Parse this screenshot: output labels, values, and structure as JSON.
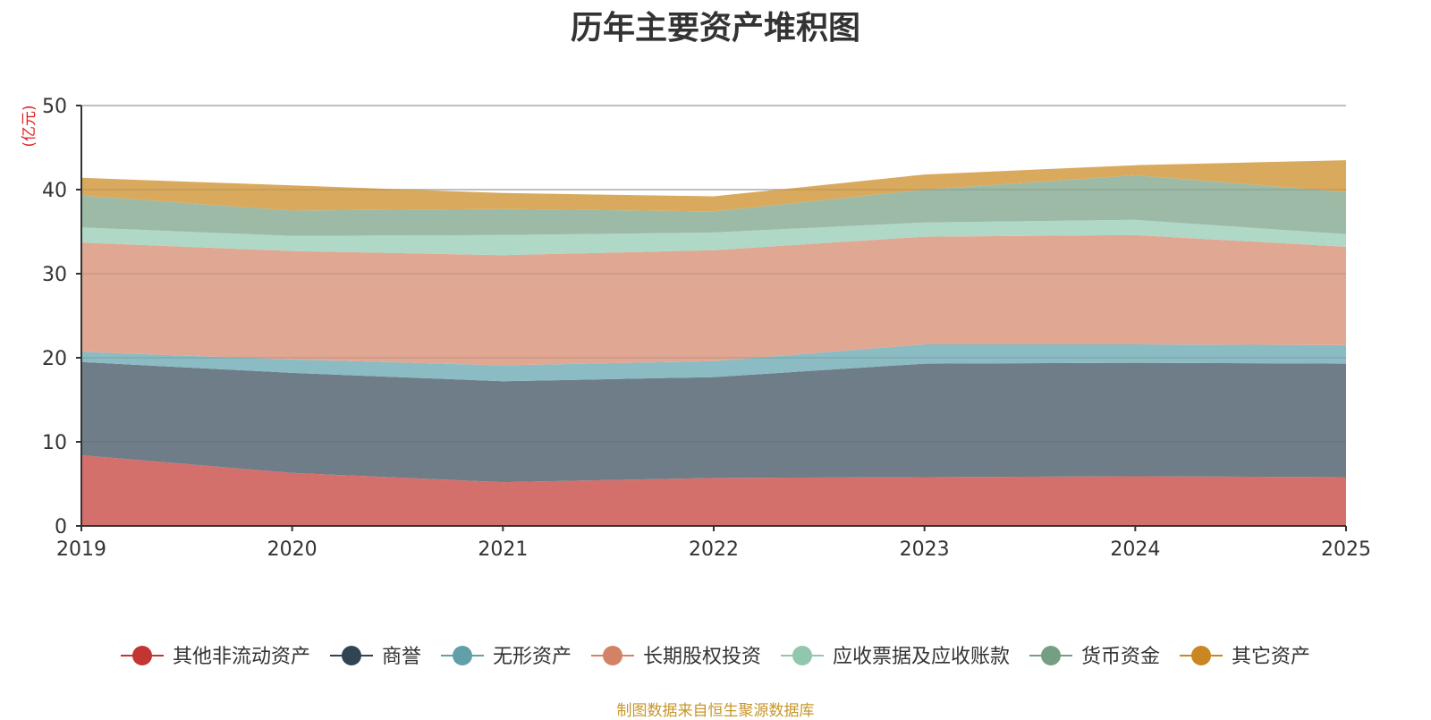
{
  "chart_data": {
    "type": "area",
    "stacked": true,
    "title": "历年主要资产堆积图",
    "ylabel": "(亿元)",
    "ylim": [
      0,
      50
    ],
    "yticks": [
      "0",
      "10",
      "20",
      "30",
      "40",
      "50"
    ],
    "categories": [
      "2019",
      "2020",
      "2021",
      "2022",
      "2023",
      "2024",
      "2025"
    ],
    "series": [
      {
        "name": "其他非流动资产",
        "fill": "#d4706c",
        "marker": "#c23531",
        "values": [
          8.4,
          6.3,
          5.2,
          5.7,
          5.8,
          5.9,
          5.8
        ]
      },
      {
        "name": "商誉",
        "fill": "#6e7d88",
        "marker": "#2f4554",
        "values": [
          11.1,
          11.9,
          12.0,
          12.0,
          13.5,
          13.5,
          13.5
        ]
      },
      {
        "name": "无形资产",
        "fill": "#8bbbc3",
        "marker": "#61a0a8",
        "values": [
          1.2,
          1.6,
          1.9,
          1.9,
          2.3,
          2.2,
          2.2
        ]
      },
      {
        "name": "长期股权投资",
        "fill": "#e0a793",
        "marker": "#d48265",
        "values": [
          13.0,
          12.9,
          13.1,
          13.2,
          12.8,
          13.0,
          11.7
        ]
      },
      {
        "name": "应收票据及应收账款",
        "fill": "#afd8c6",
        "marker": "#91c7ae",
        "values": [
          1.8,
          1.8,
          2.4,
          2.1,
          1.7,
          1.8,
          1.5
        ]
      },
      {
        "name": "货币资金",
        "fill": "#9cbaa6",
        "marker": "#749f83",
        "values": [
          3.8,
          3.0,
          3.1,
          2.5,
          3.9,
          5.3,
          5.0
        ]
      },
      {
        "name": "其它资产",
        "fill": "#d9a95d",
        "marker": "#ca8622",
        "values": [
          2.1,
          3.0,
          1.9,
          1.8,
          1.8,
          1.2,
          3.8
        ]
      }
    ]
  },
  "footer": {
    "source": "制图数据来自恒生聚源数据库"
  }
}
